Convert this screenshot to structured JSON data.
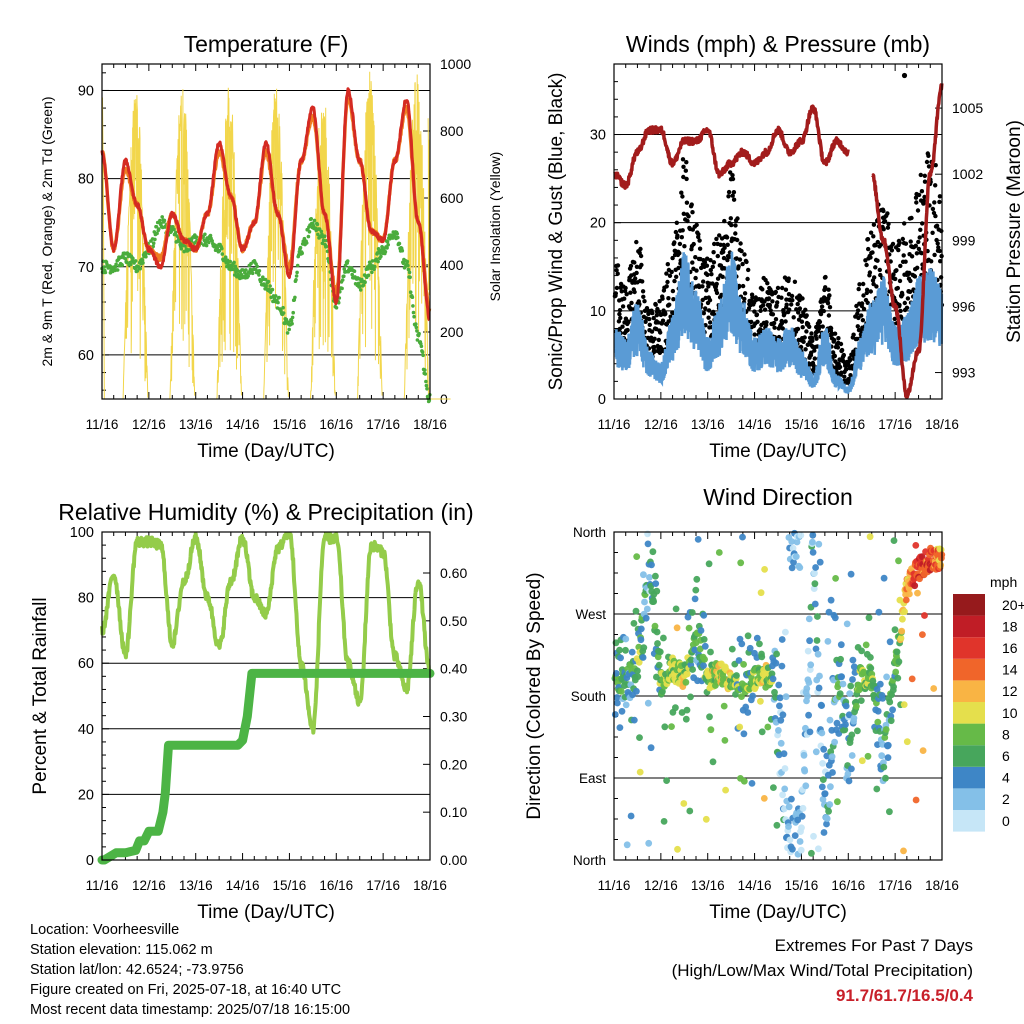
{
  "colors": {
    "temp2m": "#d42a22",
    "temp9m": "#ee7d20",
    "dewpoint": "#4aac3c",
    "solar": "#f2d64b",
    "wind": "#5a9bd5",
    "gust": "#000000",
    "pressure": "#a21c1c",
    "rh": "#94cc4a",
    "precip": "#4cb445",
    "extremes": "#c8202a"
  },
  "charts": {
    "temperature": {
      "title": "Temperature (F)",
      "xlabel": "Time (Day/UTC)",
      "ylabel": "2m & 9m T (Red, Orange) & 2m Td (Green)",
      "y2label": "Solar Insolation (Yellow)",
      "yticks": [
        "60",
        "70",
        "80",
        "90"
      ],
      "y2ticks": [
        "0",
        "200",
        "400",
        "600",
        "800",
        "1000"
      ]
    },
    "winds": {
      "title": "Winds (mph) & Pressure (mb)",
      "xlabel": "Time (Day/UTC)",
      "ylabel": "Sonic/Prop Wind & Gust (Blue, Black)",
      "y2label": "Station Pressure (Maroon)",
      "yticks": [
        "0",
        "10",
        "20",
        "30"
      ],
      "y2ticks": [
        "993",
        "996",
        "999",
        "1002",
        "1005"
      ]
    },
    "humidity": {
      "title": "Relative Humidity (%) & Precipitation (in)",
      "xlabel": "Time (Day/UTC)",
      "ylabel": "Percent & Total Rainfall",
      "yticks": [
        "0",
        "20",
        "40",
        "60",
        "80",
        "100"
      ],
      "y2ticks": [
        "0.00",
        "0.10",
        "0.20",
        "0.30",
        "0.40",
        "0.50",
        "0.60"
      ]
    },
    "direction": {
      "title": "Wind Direction",
      "xlabel": "Time (Day/UTC)",
      "ylabel": "Direction (Colored By Speed)",
      "yticks": [
        "North",
        "East",
        "South",
        "West",
        "North"
      ],
      "legend_title": "mph",
      "legend_labels": [
        "0",
        "2",
        "4",
        "6",
        "8",
        "10",
        "12",
        "14",
        "16",
        "18",
        "20+"
      ],
      "legend_colors": [
        "#c6e6f7",
        "#84c0e8",
        "#3e86c6",
        "#47a65c",
        "#66ba48",
        "#e5df4c",
        "#f9b444",
        "#f0652a",
        "#e0342b",
        "#c01d26",
        "#961a1c"
      ]
    }
  },
  "x_tick_labels": [
    "11/16",
    "12/16",
    "13/16",
    "14/16",
    "15/16",
    "16/16",
    "17/16",
    "18/16"
  ],
  "info": {
    "location": "Location: Voorheesville",
    "elevation": "Station elevation: 115.062 m",
    "latlon": "Station lat/lon: 42.6524; -73.9756",
    "created": "Figure created on Fri, 2025-07-18, at 16:40 UTC",
    "recent": "Most recent data timestamp: 2025/07/18 16:15:00"
  },
  "extremes": {
    "title": "Extremes For Past 7 Days",
    "subtitle": "(High/Low/Max Wind/Total Precipitation)",
    "values": "91.7/61.7/16.5/0.4"
  },
  "chart_data": [
    {
      "type": "line",
      "title": "Temperature (F)",
      "xlabel": "Time (Day/UTC)",
      "ylabel": "2m & 9m T (Red, Orange) & 2m Td (Green)",
      "y2label": "Solar Insolation (Yellow)",
      "x": [
        11.0,
        11.25,
        11.5,
        11.75,
        12.0,
        12.25,
        12.5,
        12.75,
        13.0,
        13.25,
        13.5,
        13.75,
        14.0,
        14.25,
        14.5,
        14.75,
        15.0,
        15.25,
        15.5,
        15.75,
        16.0,
        16.25,
        16.5,
        16.75,
        17.0,
        17.25,
        17.5,
        17.75,
        18.0
      ],
      "series": [
        {
          "name": "2m T",
          "axis": "left",
          "values": [
            83,
            72,
            82,
            77,
            72,
            70,
            76,
            73,
            72,
            76,
            84,
            78,
            72,
            75,
            84,
            76,
            69,
            82,
            88,
            76,
            66,
            90,
            82,
            74,
            73,
            82,
            89,
            75,
            64
          ]
        },
        {
          "name": "9m T",
          "axis": "left",
          "values": [
            83,
            72,
            81,
            77,
            72,
            71,
            76,
            73,
            72,
            76,
            83,
            78,
            72,
            75,
            83,
            76,
            70,
            82,
            87,
            76,
            67,
            89,
            82,
            74,
            73,
            82,
            88,
            75,
            65
          ]
        },
        {
          "name": "2m Td",
          "axis": "left",
          "values": [
            70,
            70,
            71,
            70,
            72,
            75,
            74,
            72,
            73,
            73,
            72,
            70,
            69,
            70,
            68,
            66,
            63,
            72,
            75,
            73,
            66,
            70,
            68,
            70,
            72,
            74,
            70,
            62,
            55
          ]
        },
        {
          "name": "Solar Insolation",
          "axis": "right",
          "values": [
            60,
            0,
            960,
            0,
            20,
            0,
            940,
            0,
            10,
            0,
            930,
            0,
            20,
            0,
            920,
            0,
            10,
            0,
            960,
            0,
            20,
            0,
            1000,
            0,
            20,
            0,
            1000,
            0,
            900
          ]
        }
      ],
      "ylim": [
        55,
        93
      ],
      "y2lim": [
        0,
        1000
      ]
    },
    {
      "type": "line",
      "title": "Winds (mph) & Pressure (mb)",
      "xlabel": "Time (Day/UTC)",
      "ylabel": "Sonic/Prop Wind & Gust (Blue, Black)",
      "y2label": "Station Pressure (Maroon)",
      "x": [
        11.0,
        11.25,
        11.5,
        11.75,
        12.0,
        12.25,
        12.5,
        12.75,
        13.0,
        13.25,
        13.5,
        13.75,
        14.0,
        14.25,
        14.5,
        14.75,
        15.0,
        15.25,
        15.5,
        15.75,
        16.0,
        16.25,
        16.5,
        16.75,
        17.0,
        17.25,
        17.5,
        17.75,
        18.0
      ],
      "series": [
        {
          "name": "Wind",
          "axis": "left",
          "values": [
            6,
            5,
            8,
            4,
            3,
            7,
            12,
            9,
            5,
            8,
            12,
            8,
            5,
            6,
            5,
            6,
            4,
            2,
            6,
            2,
            1,
            5,
            8,
            10,
            6,
            7,
            10,
            11,
            9
          ]
        },
        {
          "name": "Gust",
          "axis": "left",
          "values": [
            11,
            9,
            13,
            7,
            8,
            12,
            19,
            14,
            11,
            13,
            18,
            12,
            8,
            10,
            9,
            10,
            8,
            5,
            10,
            5,
            3,
            9,
            14,
            16,
            12,
            14,
            18,
            20,
            17
          ]
        },
        {
          "name": "Station Pressure",
          "axis": "right",
          "values": [
            1002,
            1001.5,
            1003,
            1004,
            1004,
            1002.5,
            1003.5,
            1003.5,
            1004,
            1002,
            1002.5,
            1003,
            1002.5,
            1003,
            1004,
            1003,
            1003.5,
            1005,
            1002.5,
            1003.5,
            1003,
            null,
            1002,
            999,
            996,
            992,
            994,
            1002,
            1006
          ]
        }
      ],
      "ylim": [
        0,
        38
      ],
      "y2lim": [
        991.8,
        1007
      ]
    },
    {
      "type": "line",
      "title": "Relative Humidity (%) & Precipitation (in)",
      "xlabel": "Time (Day/UTC)",
      "ylabel": "Percent & Total Rainfall",
      "x": [
        11.0,
        11.25,
        11.5,
        11.75,
        12.0,
        12.25,
        12.5,
        12.75,
        13.0,
        13.25,
        13.5,
        13.75,
        14.0,
        14.25,
        14.5,
        14.75,
        15.0,
        15.25,
        15.5,
        15.75,
        16.0,
        16.25,
        16.5,
        16.75,
        17.0,
        17.25,
        17.5,
        17.75,
        18.0
      ],
      "series": [
        {
          "name": "Relative Humidity",
          "axis": "left",
          "values": [
            70,
            87,
            63,
            97,
            97,
            96,
            66,
            85,
            98,
            80,
            65,
            85,
            98,
            80,
            75,
            95,
            100,
            60,
            40,
            98,
            98,
            60,
            48,
            96,
            94,
            62,
            52,
            85,
            57
          ]
        },
        {
          "name": "Total Precipitation",
          "axis": "right",
          "values": [
            0,
            0,
            0.01,
            0.015,
            0.04,
            0.1,
            0.13,
            0.24,
            0.24,
            0.24,
            0.24,
            0.25,
            0.25,
            0.39,
            0.39,
            0.39,
            0.39,
            0.39,
            0.39,
            0.39,
            0.39,
            0.39,
            0.39,
            0.39,
            0.39,
            0.39,
            0.39,
            0.39,
            0.39
          ]
        }
      ],
      "ylim": [
        0,
        100
      ],
      "y2lim": [
        0,
        0.6857
      ]
    },
    {
      "type": "scatter",
      "title": "Wind Direction",
      "xlabel": "Time (Day/UTC)",
      "ylabel": "Direction (Colored By Speed)",
      "x": [
        11.0,
        11.25,
        11.5,
        11.75,
        12.0,
        12.25,
        12.5,
        12.75,
        13.0,
        13.25,
        13.5,
        13.75,
        14.0,
        14.25,
        14.5,
        14.75,
        15.0,
        15.25,
        15.5,
        15.75,
        16.0,
        16.25,
        16.5,
        16.75,
        17.0,
        17.25,
        17.5,
        17.75,
        18.0
      ],
      "series": [
        {
          "name": "Direction (deg)",
          "values": [
            190,
            200,
            210,
            330,
            195,
            210,
            200,
            250,
            200,
            205,
            195,
            190,
            200,
            210,
            170,
            15,
            10,
            330,
            40,
            200,
            120,
            200,
            200,
            130,
            210,
            300,
            320,
            330,
            330
          ]
        },
        {
          "name": "Speed (mph)",
          "values": [
            6,
            4,
            8,
            3,
            7,
            8,
            9,
            5,
            8,
            10,
            9,
            6,
            7,
            9,
            3,
            2,
            2,
            3,
            2,
            6,
            3,
            8,
            8,
            4,
            7,
            12,
            16,
            15,
            12
          ]
        }
      ],
      "ylim": [
        360,
        0
      ],
      "yticks": [
        "North",
        "East",
        "South",
        "West",
        "North"
      ]
    }
  ]
}
